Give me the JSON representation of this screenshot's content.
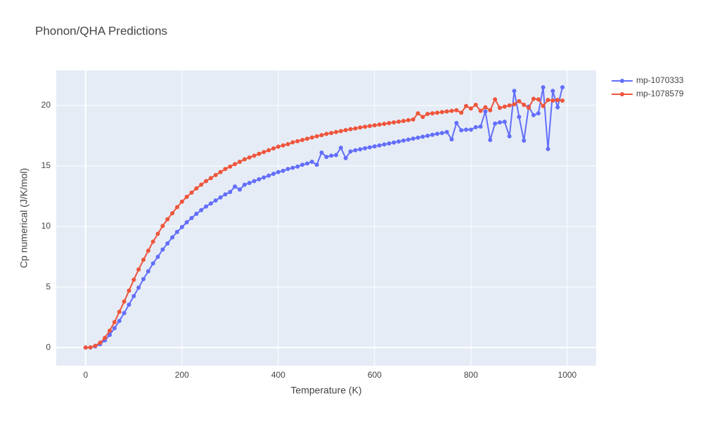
{
  "chart_data": {
    "type": "line",
    "title": "Phonon/QHA Predictions",
    "x_label": "Temperature (K)",
    "y_label": "Cp numerical (J/K/mol)",
    "x": [
      0,
      10,
      20,
      30,
      40,
      50,
      60,
      70,
      80,
      90,
      100,
      110,
      120,
      130,
      140,
      150,
      160,
      170,
      180,
      190,
      200,
      210,
      220,
      230,
      240,
      250,
      260,
      270,
      280,
      290,
      300,
      310,
      320,
      330,
      340,
      350,
      360,
      370,
      380,
      390,
      400,
      410,
      420,
      430,
      440,
      450,
      460,
      470,
      480,
      490,
      500,
      510,
      520,
      530,
      540,
      550,
      560,
      570,
      580,
      590,
      600,
      610,
      620,
      630,
      640,
      650,
      660,
      670,
      680,
      690,
      700,
      710,
      720,
      730,
      740,
      750,
      760,
      770,
      780,
      790,
      800,
      810,
      820,
      830,
      840,
      850,
      860,
      870,
      880,
      890,
      900,
      910,
      920,
      930,
      940,
      950,
      960,
      970,
      980,
      990
    ],
    "series": [
      {
        "name": "mp-1070333",
        "color": "#636efa",
        "values": [
          0,
          0.01,
          0.1,
          0.28,
          0.6,
          1.05,
          1.6,
          2.2,
          2.85,
          3.55,
          4.25,
          4.95,
          5.65,
          6.3,
          6.95,
          7.5,
          8.1,
          8.6,
          9.1,
          9.55,
          9.95,
          10.35,
          10.7,
          11.05,
          11.35,
          11.65,
          11.9,
          12.15,
          12.4,
          12.65,
          12.85,
          13.3,
          13.05,
          13.45,
          13.6,
          13.75,
          13.9,
          14.05,
          14.2,
          14.35,
          14.5,
          14.6,
          14.75,
          14.85,
          14.95,
          15.1,
          15.2,
          15.35,
          15.1,
          16.1,
          15.75,
          15.85,
          15.9,
          16.5,
          15.65,
          16.2,
          16.3,
          16.38,
          16.46,
          16.54,
          16.62,
          16.7,
          16.78,
          16.86,
          16.94,
          17.02,
          17.1,
          17.18,
          17.26,
          17.34,
          17.42,
          17.5,
          17.58,
          17.66,
          17.72,
          17.8,
          17.2,
          18.55,
          17.95,
          18.0,
          18.0,
          18.2,
          18.25,
          19.5,
          17.15,
          18.5,
          18.6,
          18.65,
          17.45,
          21.2,
          19.05,
          17.1,
          19.9,
          19.2,
          19.35,
          21.5,
          16.4,
          21.2,
          19.85,
          21.5
        ]
      },
      {
        "name": "mp-1078579",
        "color": "#ef553b",
        "values": [
          0,
          0.02,
          0.15,
          0.4,
          0.8,
          1.4,
          2.1,
          2.95,
          3.8,
          4.7,
          5.6,
          6.45,
          7.25,
          8.0,
          8.75,
          9.4,
          10.05,
          10.6,
          11.1,
          11.6,
          12.05,
          12.45,
          12.8,
          13.15,
          13.45,
          13.75,
          14.0,
          14.25,
          14.5,
          14.75,
          14.95,
          15.15,
          15.35,
          15.55,
          15.7,
          15.85,
          16.0,
          16.15,
          16.3,
          16.45,
          16.6,
          16.7,
          16.8,
          16.95,
          17.05,
          17.15,
          17.25,
          17.35,
          17.45,
          17.55,
          17.65,
          17.72,
          17.8,
          17.88,
          17.96,
          18.04,
          18.1,
          18.18,
          18.24,
          18.3,
          18.36,
          18.42,
          18.48,
          18.54,
          18.6,
          18.66,
          18.72,
          18.78,
          18.84,
          19.35,
          19.05,
          19.3,
          19.35,
          19.4,
          19.45,
          19.5,
          19.55,
          19.6,
          19.4,
          19.95,
          19.75,
          20.05,
          19.55,
          19.85,
          19.6,
          20.5,
          19.8,
          19.9,
          20.0,
          20.1,
          20.35,
          20.05,
          19.8,
          20.55,
          20.5,
          19.95,
          20.45,
          20.4,
          20.45,
          20.4
        ]
      }
    ],
    "xlim": [
      -61,
      1060
    ],
    "ylim": [
      -1.5,
      22.9
    ],
    "xticks": [
      0,
      200,
      400,
      600,
      800,
      1000
    ],
    "yticks": [
      0,
      5,
      10,
      15,
      20
    ],
    "grid": true,
    "legend": "top-right"
  }
}
